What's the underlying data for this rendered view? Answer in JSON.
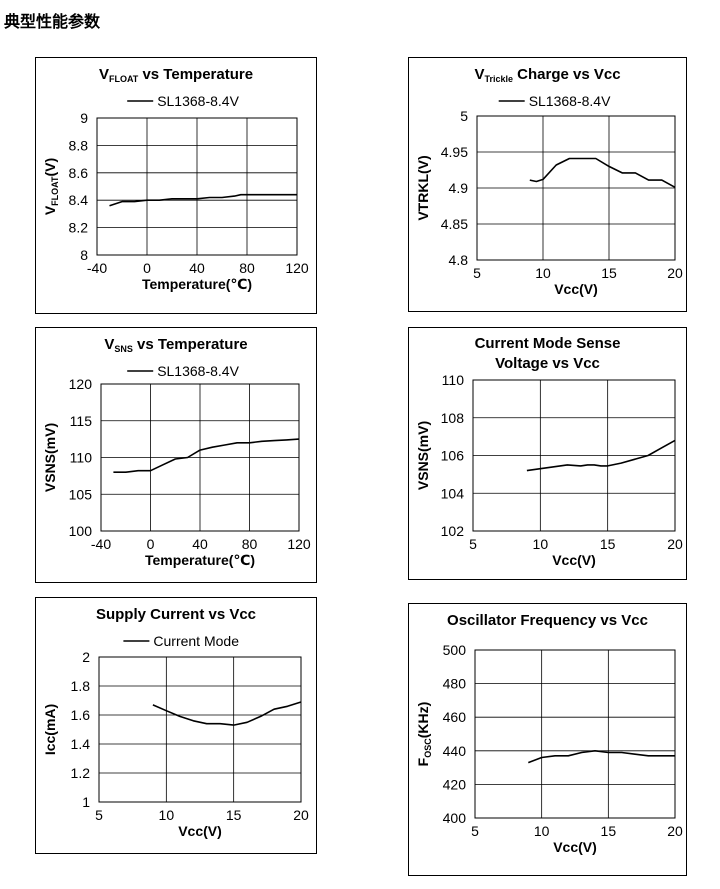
{
  "page": {
    "heading": "典型性能参数"
  },
  "chart_data": [
    {
      "id": "c1",
      "type": "line",
      "title": {
        "main": "V",
        "sub": "FLOAT",
        "rest": " vs Temperature"
      },
      "ylabel": {
        "main": "V",
        "sub": "FLOAT",
        "rest": "(V)"
      },
      "xlabel": "Temperature(℃)",
      "legend": "SL1368-8.4V",
      "xlim": [
        -40,
        120
      ],
      "ylim": [
        8,
        9
      ],
      "xticks": [
        -40,
        0,
        40,
        80,
        120
      ],
      "yticks": [
        8,
        8.2,
        8.4,
        8.6,
        8.8,
        9
      ],
      "series": [
        {
          "name": "SL1368-8.4V",
          "x": [
            -30,
            -20,
            -10,
            0,
            10,
            20,
            30,
            40,
            50,
            60,
            70,
            75,
            80,
            90,
            100,
            110,
            120
          ],
          "y": [
            8.36,
            8.39,
            8.39,
            8.4,
            8.4,
            8.41,
            8.41,
            8.41,
            8.42,
            8.42,
            8.43,
            8.44,
            8.44,
            8.44,
            8.44,
            8.44,
            8.44
          ]
        }
      ]
    },
    {
      "id": "c2",
      "type": "line",
      "title": {
        "main": "V",
        "sub": "Trickle",
        "rest": " Charge vs Vcc"
      },
      "ylabel": {
        "main": "VTRKL(V)",
        "sub": "",
        "rest": ""
      },
      "xlabel": "Vcc(V)",
      "legend": "SL1368-8.4V",
      "xlim": [
        5,
        20
      ],
      "ylim": [
        4.8,
        5
      ],
      "xticks": [
        5,
        10,
        15,
        20
      ],
      "yticks": [
        4.8,
        4.85,
        4.9,
        4.95,
        5
      ],
      "series": [
        {
          "name": "SL1368-8.4V",
          "x": [
            9,
            9.5,
            10,
            11,
            12,
            13,
            14,
            15,
            16,
            17,
            18,
            19,
            20
          ],
          "y": [
            4.911,
            4.909,
            4.912,
            4.932,
            4.941,
            4.941,
            4.941,
            4.93,
            4.921,
            4.921,
            4.911,
            4.911,
            4.901
          ]
        }
      ]
    },
    {
      "id": "c3",
      "type": "line",
      "title": {
        "main": "V",
        "sub": "SNS",
        "rest": " vs Temperature"
      },
      "ylabel": {
        "main": "VSNS(mV)",
        "sub": "",
        "rest": ""
      },
      "xlabel": "Temperature(℃)",
      "legend": "SL1368-8.4V",
      "xlim": [
        -40,
        120
      ],
      "ylim": [
        100,
        120
      ],
      "xticks": [
        -40,
        0,
        40,
        80,
        120
      ],
      "yticks": [
        100,
        105,
        110,
        115,
        120
      ],
      "series": [
        {
          "name": "SL1368-8.4V",
          "x": [
            -30,
            -20,
            -10,
            0,
            10,
            20,
            30,
            40,
            50,
            60,
            70,
            80,
            90,
            100,
            110,
            120
          ],
          "y": [
            108.0,
            108.0,
            108.2,
            108.2,
            109.0,
            109.8,
            110.0,
            111.0,
            111.4,
            111.7,
            112.0,
            112.0,
            112.2,
            112.3,
            112.4,
            112.5
          ]
        }
      ]
    },
    {
      "id": "c4",
      "type": "line",
      "title": {
        "main": "Current Mode Sense",
        "sub": "",
        "rest": "",
        "line2": "Voltage vs Vcc"
      },
      "ylabel": {
        "main": "VSNS(mV)",
        "sub": "",
        "rest": ""
      },
      "xlabel": "Vcc(V)",
      "legend": "",
      "xlim": [
        5,
        20
      ],
      "ylim": [
        102,
        110
      ],
      "xticks": [
        5,
        10,
        15,
        20
      ],
      "yticks": [
        102,
        104,
        106,
        108,
        110
      ],
      "series": [
        {
          "name": "",
          "x": [
            9,
            10,
            11,
            12,
            13,
            13.5,
            14,
            14.5,
            15,
            16,
            17,
            18,
            19,
            20
          ],
          "y": [
            105.2,
            105.3,
            105.4,
            105.5,
            105.45,
            105.5,
            105.5,
            105.45,
            105.45,
            105.6,
            105.8,
            106.0,
            106.4,
            106.8
          ]
        }
      ]
    },
    {
      "id": "c5",
      "type": "line",
      "title": {
        "main": "Supply Current vs Vcc",
        "sub": "",
        "rest": ""
      },
      "ylabel": {
        "main": "Icc(mA)",
        "sub": "",
        "rest": ""
      },
      "xlabel": "Vcc(V)",
      "legend": "Current Mode",
      "xlim": [
        5,
        20
      ],
      "ylim": [
        1,
        2
      ],
      "xticks": [
        5,
        10,
        15,
        20
      ],
      "yticks": [
        1,
        1.2,
        1.4,
        1.6,
        1.8,
        2
      ],
      "series": [
        {
          "name": "Current Mode",
          "x": [
            9,
            10,
            11,
            12,
            13,
            14,
            15,
            16,
            17,
            18,
            19,
            20
          ],
          "y": [
            1.67,
            1.63,
            1.59,
            1.56,
            1.54,
            1.54,
            1.53,
            1.55,
            1.59,
            1.64,
            1.66,
            1.69
          ]
        }
      ]
    },
    {
      "id": "c6",
      "type": "line",
      "title": {
        "main": "Oscillator Frequency vs Vcc",
        "sub": "",
        "rest": ""
      },
      "ylabel": {
        "main": "F",
        "sub": "OSC",
        "rest": "(KHz)"
      },
      "xlabel": "Vcc(V)",
      "legend": "",
      "xlim": [
        5,
        20
      ],
      "ylim": [
        400,
        500
      ],
      "xticks": [
        5,
        10,
        15,
        20
      ],
      "yticks": [
        400,
        420,
        440,
        460,
        480,
        500
      ],
      "series": [
        {
          "name": "",
          "x": [
            9,
            10,
            11,
            12,
            13,
            14,
            15,
            16,
            17,
            18,
            19,
            20
          ],
          "y": [
            433,
            436,
            437,
            437,
            439,
            440,
            439,
            439,
            438,
            437,
            437,
            437
          ]
        }
      ]
    }
  ]
}
